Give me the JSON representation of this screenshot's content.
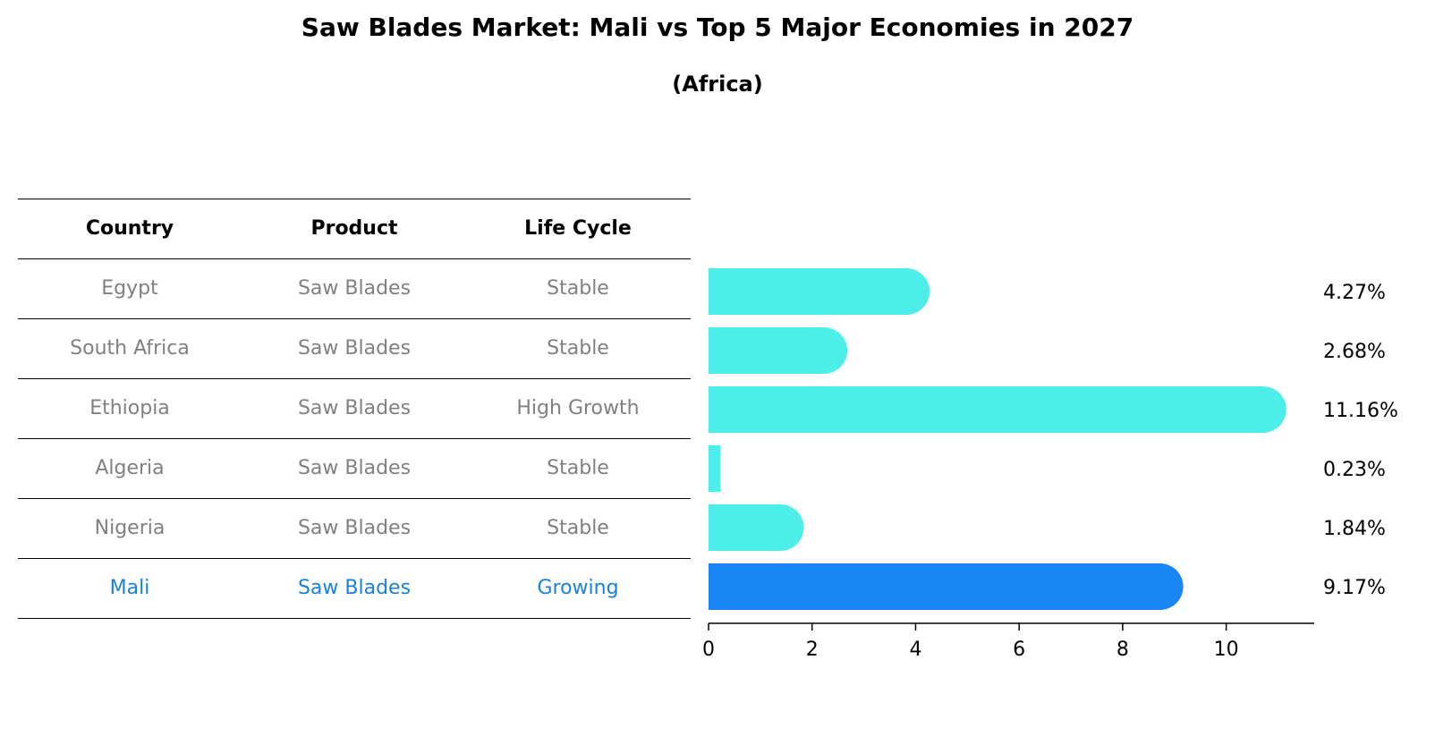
{
  "title": "Saw Blades Market: Mali vs Top 5 Major Economies in 2027",
  "subtitle": "(Africa)",
  "table": {
    "headers": [
      "Country",
      "Product",
      "Life Cycle"
    ],
    "rows": [
      {
        "country": "Egypt",
        "product": "Saw Blades",
        "life_cycle": "Stable"
      },
      {
        "country": "South Africa",
        "product": "Saw Blades",
        "life_cycle": "Stable"
      },
      {
        "country": "Ethiopia",
        "product": "Saw Blades",
        "life_cycle": "High Growth"
      },
      {
        "country": "Algeria",
        "product": "Saw Blades",
        "life_cycle": "Stable"
      },
      {
        "country": "Nigeria",
        "product": "Saw Blades",
        "life_cycle": "Stable"
      },
      {
        "country": "Mali",
        "product": "Saw Blades",
        "life_cycle": "Growing"
      }
    ]
  },
  "chart_data": {
    "type": "bar",
    "orientation": "horizontal",
    "categories": [
      "Egypt",
      "South Africa",
      "Ethiopia",
      "Algeria",
      "Nigeria",
      "Mali"
    ],
    "values": [
      4.27,
      2.68,
      11.16,
      0.23,
      1.84,
      9.17
    ],
    "value_labels": [
      "4.27%",
      "2.68%",
      "11.16%",
      "0.23%",
      "1.84%",
      "9.17%"
    ],
    "highlight": "Mali",
    "xlim": [
      0,
      11.7
    ],
    "xticks": [
      0,
      2,
      4,
      6,
      8,
      10
    ],
    "grid": false,
    "colors": {
      "default": "#4deeea",
      "highlight": "#1a85f5"
    }
  }
}
